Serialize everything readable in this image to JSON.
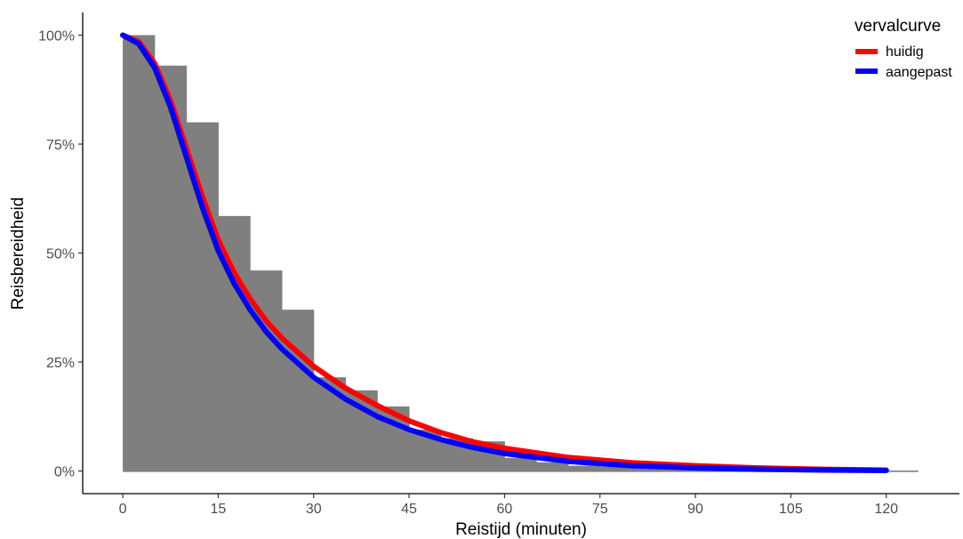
{
  "chart_data": {
    "type": "bar",
    "xlabel": "Reistijd (minuten)",
    "ylabel": "Reisbereidheid",
    "xlim": [
      -6.3,
      131.5
    ],
    "ylim": [
      -0.052,
      1.052
    ],
    "x_ticks": [
      0,
      15,
      30,
      45,
      60,
      75,
      90,
      105,
      120
    ],
    "x_tick_labels": [
      "0",
      "15",
      "30",
      "45",
      "60",
      "75",
      "90",
      "105",
      "120"
    ],
    "y_ticks": [
      0,
      0.25,
      0.5,
      0.75,
      1.0
    ],
    "y_tick_labels": [
      "0%",
      "25%",
      "50%",
      "75%",
      "100%"
    ],
    "grid": false,
    "histogram": {
      "bin_width": 5,
      "color": "#7f7f7f",
      "bins": [
        {
          "x": 0,
          "value": 1.0
        },
        {
          "x": 5,
          "value": 0.93
        },
        {
          "x": 10,
          "value": 0.8
        },
        {
          "x": 15,
          "value": 0.585
        },
        {
          "x": 20,
          "value": 0.46
        },
        {
          "x": 25,
          "value": 0.37
        },
        {
          "x": 30,
          "value": 0.215
        },
        {
          "x": 35,
          "value": 0.185
        },
        {
          "x": 40,
          "value": 0.148
        },
        {
          "x": 45,
          "value": 0.095
        },
        {
          "x": 50,
          "value": 0.075
        },
        {
          "x": 55,
          "value": 0.068
        },
        {
          "x": 60,
          "value": 0.03
        },
        {
          "x": 65,
          "value": 0.02
        },
        {
          "x": 70,
          "value": 0.012
        },
        {
          "x": 75,
          "value": 0.01
        },
        {
          "x": 80,
          "value": 0.008
        },
        {
          "x": 85,
          "value": 0.006
        },
        {
          "x": 90,
          "value": 0.005
        },
        {
          "x": 95,
          "value": 0.004
        },
        {
          "x": 100,
          "value": 0.003
        },
        {
          "x": 105,
          "value": 0.002
        },
        {
          "x": 110,
          "value": 0.001
        },
        {
          "x": 115,
          "value": 0.001
        },
        {
          "x": 120,
          "value": 0.001
        }
      ],
      "tail_end": 125
    },
    "legend": {
      "title": "vervalcurve",
      "position": "top-right"
    },
    "series": [
      {
        "name": "huidig",
        "color": "#ff0000",
        "x": [
          0,
          2.5,
          5,
          7.5,
          10,
          12.5,
          15,
          17.5,
          20,
          22.5,
          25,
          30,
          35,
          40,
          45,
          50,
          55,
          60,
          70,
          80,
          90,
          100,
          110,
          120
        ],
        "y": [
          1.0,
          0.985,
          0.935,
          0.85,
          0.74,
          0.63,
          0.53,
          0.455,
          0.395,
          0.345,
          0.305,
          0.24,
          0.19,
          0.15,
          0.115,
          0.088,
          0.067,
          0.052,
          0.031,
          0.019,
          0.012,
          0.007,
          0.004,
          0.002
        ]
      },
      {
        "name": "aangepast",
        "color": "#0000ff",
        "x": [
          0,
          2.5,
          5,
          7.5,
          10,
          12.5,
          15,
          17.5,
          20,
          22.5,
          25,
          30,
          35,
          40,
          45,
          50,
          55,
          60,
          70,
          80,
          90,
          100,
          110,
          120
        ],
        "y": [
          1.0,
          0.98,
          0.925,
          0.835,
          0.72,
          0.605,
          0.505,
          0.43,
          0.37,
          0.32,
          0.28,
          0.215,
          0.165,
          0.125,
          0.095,
          0.072,
          0.054,
          0.04,
          0.022,
          0.012,
          0.007,
          0.004,
          0.002,
          0.001
        ]
      }
    ]
  }
}
